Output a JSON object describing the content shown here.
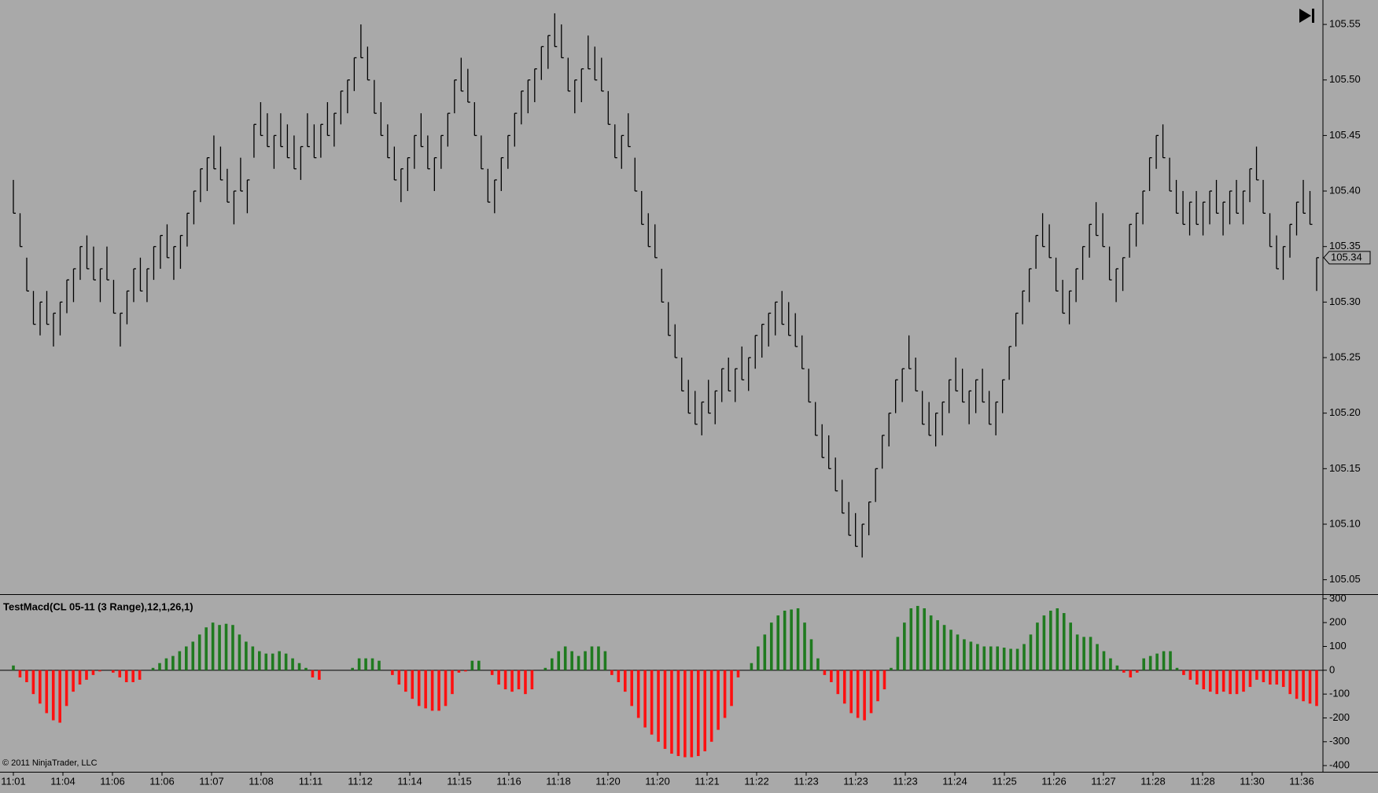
{
  "chart_data": [
    {
      "type": "ohlc",
      "high": [
        105.41,
        105.38,
        105.34,
        105.31,
        105.3,
        105.31,
        105.29,
        105.3,
        105.32,
        105.33,
        105.35,
        105.36,
        105.35,
        105.33,
        105.35,
        105.32,
        105.29,
        105.31,
        105.33,
        105.34,
        105.33,
        105.35,
        105.36,
        105.37,
        105.35,
        105.36,
        105.38,
        105.4,
        105.42,
        105.43,
        105.45,
        105.44,
        105.42,
        105.4,
        105.43,
        105.41,
        105.46,
        105.48,
        105.47,
        105.45,
        105.47,
        105.46,
        105.45,
        105.44,
        105.47,
        105.46,
        105.46,
        105.48,
        105.47,
        105.49,
        105.5,
        105.52,
        105.55,
        105.53,
        105.5,
        105.48,
        105.46,
        105.44,
        105.42,
        105.43,
        105.45,
        105.47,
        105.45,
        105.43,
        105.45,
        105.47,
        105.5,
        105.52,
        105.51,
        105.48,
        105.45,
        105.42,
        105.41,
        105.43,
        105.45,
        105.47,
        105.49,
        105.5,
        105.51,
        105.53,
        105.54,
        105.56,
        105.55,
        105.52,
        105.5,
        105.51,
        105.54,
        105.53,
        105.52,
        105.49,
        105.46,
        105.45,
        105.47,
        105.43,
        105.4,
        105.38,
        105.37,
        105.33,
        105.3,
        105.28,
        105.25,
        105.23,
        105.22,
        105.21,
        105.23,
        105.22,
        105.24,
        105.25,
        105.24,
        105.26,
        105.25,
        105.27,
        105.28,
        105.29,
        105.3,
        105.31,
        105.3,
        105.29,
        105.27,
        105.24,
        105.21,
        105.19,
        105.18,
        105.16,
        105.14,
        105.12,
        105.11,
        105.1,
        105.12,
        105.15,
        105.18,
        105.2,
        105.23,
        105.24,
        105.27,
        105.25,
        105.22,
        105.21,
        105.2,
        105.21,
        105.23,
        105.25,
        105.24,
        105.22,
        105.23,
        105.24,
        105.22,
        105.21,
        105.23,
        105.26,
        105.29,
        105.31,
        105.33,
        105.36,
        105.38,
        105.37,
        105.34,
        105.32,
        105.31,
        105.33,
        105.35,
        105.37,
        105.39,
        105.38,
        105.35,
        105.33,
        105.34,
        105.37,
        105.38,
        105.4,
        105.43,
        105.45,
        105.46,
        105.43,
        105.41,
        105.4,
        105.39,
        105.4,
        105.39,
        105.4,
        105.41,
        105.39,
        105.4,
        105.41,
        105.4,
        105.42,
        105.44,
        105.41,
        105.38,
        105.36,
        105.35,
        105.37,
        105.39,
        105.41,
        105.4,
        105.34
      ],
      "low": [
        105.38,
        105.35,
        105.31,
        105.28,
        105.27,
        105.28,
        105.26,
        105.27,
        105.29,
        105.3,
        105.32,
        105.33,
        105.32,
        105.3,
        105.32,
        105.29,
        105.26,
        105.28,
        105.3,
        105.31,
        105.3,
        105.32,
        105.33,
        105.34,
        105.32,
        105.33,
        105.35,
        105.37,
        105.39,
        105.4,
        105.42,
        105.41,
        105.39,
        105.37,
        105.4,
        105.38,
        105.43,
        105.45,
        105.44,
        105.42,
        105.44,
        105.43,
        105.42,
        105.41,
        105.44,
        105.43,
        105.43,
        105.45,
        105.44,
        105.46,
        105.47,
        105.49,
        105.52,
        105.5,
        105.47,
        105.45,
        105.43,
        105.41,
        105.39,
        105.4,
        105.42,
        105.44,
        105.42,
        105.4,
        105.42,
        105.44,
        105.47,
        105.49,
        105.48,
        105.45,
        105.42,
        105.39,
        105.38,
        105.4,
        105.42,
        105.44,
        105.46,
        105.47,
        105.48,
        105.5,
        105.51,
        105.53,
        105.52,
        105.49,
        105.47,
        105.48,
        105.51,
        105.5,
        105.49,
        105.46,
        105.43,
        105.42,
        105.44,
        105.4,
        105.37,
        105.35,
        105.34,
        105.3,
        105.27,
        105.25,
        105.22,
        105.2,
        105.19,
        105.18,
        105.2,
        105.19,
        105.21,
        105.22,
        105.21,
        105.23,
        105.22,
        105.24,
        105.25,
        105.26,
        105.27,
        105.28,
        105.27,
        105.26,
        105.24,
        105.21,
        105.18,
        105.16,
        105.15,
        105.13,
        105.11,
        105.09,
        105.08,
        105.07,
        105.09,
        105.12,
        105.15,
        105.17,
        105.2,
        105.21,
        105.24,
        105.22,
        105.19,
        105.18,
        105.17,
        105.18,
        105.2,
        105.22,
        105.21,
        105.19,
        105.2,
        105.21,
        105.19,
        105.18,
        105.2,
        105.23,
        105.26,
        105.28,
        105.3,
        105.33,
        105.35,
        105.34,
        105.31,
        105.29,
        105.28,
        105.3,
        105.32,
        105.34,
        105.36,
        105.35,
        105.32,
        105.3,
        105.31,
        105.34,
        105.35,
        105.37,
        105.4,
        105.42,
        105.43,
        105.4,
        105.38,
        105.37,
        105.36,
        105.37,
        105.36,
        105.37,
        105.38,
        105.36,
        105.37,
        105.38,
        105.37,
        105.39,
        105.41,
        105.38,
        105.35,
        105.33,
        105.32,
        105.34,
        105.36,
        105.38,
        105.37,
        105.31
      ],
      "close": [
        105.38,
        105.35,
        105.31,
        105.28,
        105.3,
        105.28,
        105.29,
        105.3,
        105.32,
        105.33,
        105.35,
        105.33,
        105.32,
        105.33,
        105.32,
        105.29,
        105.29,
        105.31,
        105.33,
        105.31,
        105.33,
        105.35,
        105.36,
        105.34,
        105.35,
        105.36,
        105.38,
        105.4,
        105.42,
        105.43,
        105.42,
        105.41,
        105.39,
        105.4,
        105.4,
        105.41,
        105.46,
        105.45,
        105.44,
        105.45,
        105.44,
        105.43,
        105.42,
        105.44,
        105.44,
        105.43,
        105.46,
        105.45,
        105.47,
        105.49,
        105.5,
        105.52,
        105.52,
        105.5,
        105.47,
        105.45,
        105.43,
        105.41,
        105.42,
        105.43,
        105.45,
        105.44,
        105.42,
        105.43,
        105.45,
        105.47,
        105.5,
        105.49,
        105.48,
        105.45,
        105.42,
        105.39,
        105.41,
        105.43,
        105.45,
        105.47,
        105.49,
        105.5,
        105.51,
        105.53,
        105.54,
        105.53,
        105.52,
        105.49,
        105.5,
        105.51,
        105.51,
        105.5,
        105.49,
        105.46,
        105.43,
        105.45,
        105.44,
        105.4,
        105.37,
        105.35,
        105.34,
        105.3,
        105.27,
        105.25,
        105.22,
        105.2,
        105.19,
        105.21,
        105.2,
        105.22,
        105.24,
        105.22,
        105.24,
        105.23,
        105.25,
        105.27,
        105.28,
        105.29,
        105.3,
        105.28,
        105.27,
        105.26,
        105.24,
        105.21,
        105.18,
        105.16,
        105.15,
        105.13,
        105.11,
        105.09,
        105.08,
        105.1,
        105.12,
        105.15,
        105.18,
        105.2,
        105.23,
        105.24,
        105.24,
        105.22,
        105.19,
        105.18,
        105.2,
        105.21,
        105.23,
        105.22,
        105.21,
        105.22,
        105.23,
        105.21,
        105.19,
        105.21,
        105.23,
        105.26,
        105.29,
        105.31,
        105.33,
        105.36,
        105.35,
        105.34,
        105.31,
        105.29,
        105.31,
        105.33,
        105.35,
        105.37,
        105.36,
        105.35,
        105.32,
        105.33,
        105.34,
        105.37,
        105.38,
        105.4,
        105.43,
        105.45,
        105.43,
        105.4,
        105.38,
        105.37,
        105.39,
        105.37,
        105.39,
        105.4,
        105.38,
        105.39,
        105.4,
        105.38,
        105.4,
        105.42,
        105.41,
        105.38,
        105.35,
        105.33,
        105.35,
        105.37,
        105.39,
        105.38,
        105.37,
        105.34
      ],
      "color": "#000000",
      "ylim": [
        105.037,
        105.572
      ],
      "yticks": [
        105.05,
        {
          "value": 105.1,
          "label": "105.10"
        },
        105.15,
        {
          "value": 105.2,
          "label": "105.20"
        },
        105.25,
        {
          "value": 105.3,
          "label": "105.30"
        },
        105.35,
        {
          "value": 105.4,
          "label": "105.40"
        },
        105.45,
        {
          "value": 105.5,
          "label": "105.50"
        },
        105.55
      ],
      "last_price": 105.34,
      "x_labels": [
        "11:01",
        "11:04",
        "11:06",
        "11:06",
        "11:07",
        "11:08",
        "11:11",
        "11:12",
        "11:14",
        "11:15",
        "11:16",
        "11:18",
        "11:20",
        "11:20",
        "11:21",
        "11:22",
        "11:23",
        "11:23",
        "11:23",
        "11:24",
        "11:25",
        "11:26",
        "11:27",
        "11:28",
        "11:28",
        "11:30",
        "11:36"
      ],
      "copyright": "© 2011 NinjaTrader, LLC"
    },
    {
      "type": "bar",
      "title": "TestMacd(CL 05-11 (3 Range),12,1,26,1)",
      "values": [
        20,
        -30,
        -50,
        -100,
        -140,
        -180,
        -210,
        -220,
        -150,
        -90,
        -60,
        -40,
        -20,
        -5,
        0,
        -10,
        -30,
        -50,
        -50,
        -40,
        0,
        10,
        30,
        50,
        60,
        80,
        100,
        120,
        150,
        180,
        200,
        190,
        195,
        190,
        150,
        120,
        100,
        80,
        70,
        70,
        80,
        70,
        50,
        30,
        10,
        -30,
        -40,
        0,
        0,
        0,
        0,
        10,
        50,
        50,
        50,
        40,
        0,
        -20,
        -60,
        -90,
        -120,
        -150,
        -160,
        -170,
        -170,
        -150,
        -100,
        -10,
        -5,
        40,
        40,
        0,
        -20,
        -60,
        -80,
        -90,
        -80,
        -100,
        -80,
        0,
        10,
        50,
        80,
        100,
        80,
        60,
        80,
        100,
        100,
        80,
        -20,
        -50,
        -90,
        -150,
        -200,
        -240,
        -270,
        -300,
        -330,
        -350,
        -360,
        -365,
        -365,
        -360,
        -340,
        -300,
        -250,
        -200,
        -150,
        -30,
        0,
        30,
        100,
        150,
        200,
        230,
        250,
        255,
        260,
        200,
        130,
        50,
        -20,
        -50,
        -100,
        -140,
        -180,
        -200,
        -210,
        -180,
        -130,
        -80,
        10,
        140,
        200,
        260,
        270,
        260,
        230,
        210,
        190,
        170,
        150,
        130,
        120,
        110,
        100,
        100,
        100,
        95,
        90,
        90,
        110,
        150,
        200,
        230,
        250,
        260,
        240,
        200,
        150,
        140,
        140,
        110,
        80,
        50,
        20,
        -10,
        -30,
        -10,
        50,
        60,
        70,
        80,
        80,
        10,
        -20,
        -40,
        -60,
        -80,
        -90,
        -100,
        -90,
        -100,
        -100,
        -90,
        -70,
        -40,
        -50,
        -60,
        -60,
        -70,
        -100,
        -120,
        -130,
        -140,
        -150
      ],
      "up_color": "#1f7a1f",
      "down_color": "#ff1010",
      "ylim": [
        -426,
        316
      ],
      "yticks": [
        300,
        200,
        100,
        0,
        -100,
        -200,
        -300,
        -400
      ]
    }
  ]
}
